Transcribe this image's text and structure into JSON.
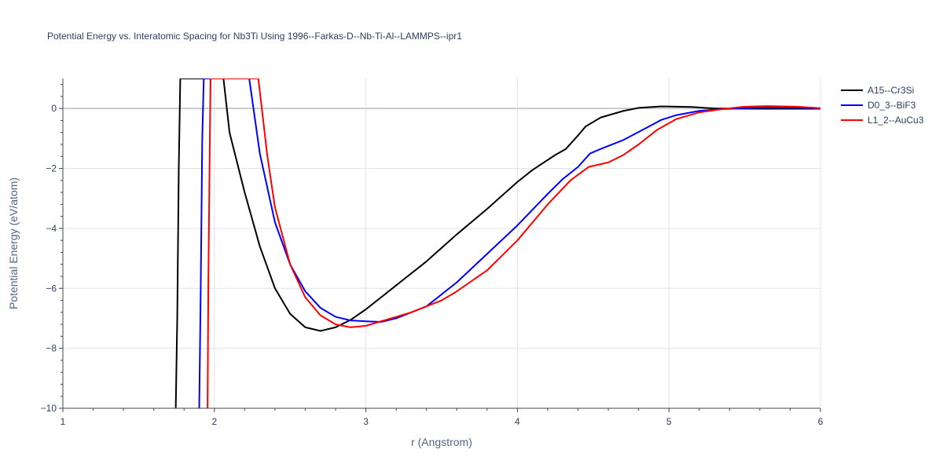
{
  "chart_data": {
    "type": "line",
    "title": "Potential Energy vs. Interatomic Spacing for Nb3Ti Using 1996--Farkas-D--Nb-Ti-Al--LAMMPS--ipr1",
    "xlabel": "r (Angstrom)",
    "ylabel": "Potential Energy (eV/atom)",
    "xlim": [
      1,
      6
    ],
    "ylim": [
      -10,
      1
    ],
    "x_ticks": [
      "1",
      "2",
      "3",
      "4",
      "5",
      "6"
    ],
    "y_ticks": [
      "−10",
      "−8",
      "−6",
      "−4",
      "−2",
      "0"
    ],
    "grid": true,
    "legend_position": "top-right",
    "series": [
      {
        "name": "A15--Cr3Si",
        "color": "#000000",
        "points": [
          [
            1.745,
            -10.0
          ],
          [
            1.755,
            -7.0
          ],
          [
            1.765,
            -2.0
          ],
          [
            1.775,
            1.0
          ],
          [
            2.06,
            1.0
          ],
          [
            2.1,
            -0.8
          ],
          [
            2.2,
            -2.8
          ],
          [
            2.3,
            -4.6
          ],
          [
            2.4,
            -6.0
          ],
          [
            2.5,
            -6.85
          ],
          [
            2.6,
            -7.3
          ],
          [
            2.7,
            -7.42
          ],
          [
            2.8,
            -7.3
          ],
          [
            2.9,
            -7.05
          ],
          [
            3.0,
            -6.7
          ],
          [
            3.1,
            -6.3
          ],
          [
            3.2,
            -5.9
          ],
          [
            3.4,
            -5.1
          ],
          [
            3.6,
            -4.2
          ],
          [
            3.8,
            -3.35
          ],
          [
            4.0,
            -2.45
          ],
          [
            4.1,
            -2.05
          ],
          [
            4.25,
            -1.55
          ],
          [
            4.32,
            -1.35
          ],
          [
            4.4,
            -0.9
          ],
          [
            4.45,
            -0.6
          ],
          [
            4.55,
            -0.3
          ],
          [
            4.7,
            -0.08
          ],
          [
            4.8,
            0.02
          ],
          [
            4.95,
            0.07
          ],
          [
            5.15,
            0.05
          ],
          [
            5.3,
            0.0
          ],
          [
            5.6,
            -0.01
          ],
          [
            6.0,
            -0.01
          ]
        ]
      },
      {
        "name": "D0_3--BiF3",
        "color": "#0000ff",
        "points": [
          [
            1.9,
            -10.0
          ],
          [
            1.91,
            -6.0
          ],
          [
            1.92,
            -1.0
          ],
          [
            1.93,
            1.0
          ],
          [
            2.23,
            1.0
          ],
          [
            2.3,
            -1.5
          ],
          [
            2.4,
            -3.8
          ],
          [
            2.5,
            -5.2
          ],
          [
            2.6,
            -6.1
          ],
          [
            2.7,
            -6.65
          ],
          [
            2.8,
            -6.95
          ],
          [
            2.9,
            -7.07
          ],
          [
            3.0,
            -7.1
          ],
          [
            3.1,
            -7.12
          ],
          [
            3.2,
            -7.0
          ],
          [
            3.3,
            -6.8
          ],
          [
            3.4,
            -6.6
          ],
          [
            3.6,
            -5.8
          ],
          [
            3.8,
            -4.85
          ],
          [
            4.0,
            -3.9
          ],
          [
            4.2,
            -2.85
          ],
          [
            4.3,
            -2.35
          ],
          [
            4.4,
            -1.95
          ],
          [
            4.48,
            -1.5
          ],
          [
            4.55,
            -1.35
          ],
          [
            4.7,
            -1.05
          ],
          [
            4.85,
            -0.65
          ],
          [
            4.95,
            -0.38
          ],
          [
            5.05,
            -0.22
          ],
          [
            5.2,
            -0.08
          ],
          [
            5.35,
            -0.02
          ],
          [
            5.6,
            0.03
          ],
          [
            5.85,
            0.03
          ],
          [
            6.0,
            0.0
          ]
        ]
      },
      {
        "name": "L1_2--AuCu3",
        "color": "#ff0000",
        "points": [
          [
            1.955,
            -10.0
          ],
          [
            1.96,
            -6.0
          ],
          [
            1.97,
            -1.0
          ],
          [
            1.975,
            1.0
          ],
          [
            2.29,
            1.0
          ],
          [
            2.35,
            -1.6
          ],
          [
            2.4,
            -3.3
          ],
          [
            2.5,
            -5.2
          ],
          [
            2.6,
            -6.3
          ],
          [
            2.7,
            -6.9
          ],
          [
            2.8,
            -7.2
          ],
          [
            2.9,
            -7.3
          ],
          [
            3.0,
            -7.25
          ],
          [
            3.1,
            -7.1
          ],
          [
            3.2,
            -6.95
          ],
          [
            3.3,
            -6.8
          ],
          [
            3.4,
            -6.6
          ],
          [
            3.5,
            -6.4
          ],
          [
            3.6,
            -6.1
          ],
          [
            3.8,
            -5.4
          ],
          [
            4.0,
            -4.4
          ],
          [
            4.2,
            -3.2
          ],
          [
            4.35,
            -2.4
          ],
          [
            4.47,
            -1.95
          ],
          [
            4.6,
            -1.8
          ],
          [
            4.7,
            -1.55
          ],
          [
            4.8,
            -1.2
          ],
          [
            4.92,
            -0.72
          ],
          [
            5.05,
            -0.35
          ],
          [
            5.2,
            -0.13
          ],
          [
            5.35,
            -0.02
          ],
          [
            5.5,
            0.06
          ],
          [
            5.65,
            0.08
          ],
          [
            5.85,
            0.06
          ],
          [
            6.0,
            0.01
          ]
        ]
      }
    ]
  }
}
